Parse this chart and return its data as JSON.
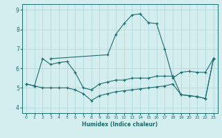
{
  "xlabel": "Humidex (Indice chaleur)",
  "bg_color": "#d4eef0",
  "line_color": "#1a6b6b",
  "grid_color": "#a8d4d8",
  "xlim": [
    -0.5,
    23.5
  ],
  "ylim": [
    3.7,
    9.3
  ],
  "yticks": [
    4,
    5,
    6,
    7,
    8,
    9
  ],
  "xticks": [
    0,
    1,
    2,
    3,
    4,
    5,
    6,
    7,
    8,
    9,
    10,
    11,
    12,
    13,
    14,
    15,
    16,
    17,
    18,
    19,
    20,
    21,
    22,
    23
  ],
  "line1_x": [
    0,
    1,
    2,
    3,
    4,
    5,
    6,
    7,
    8,
    9,
    10,
    11,
    12,
    13,
    14,
    15,
    16,
    17,
    18,
    19,
    20,
    21,
    22,
    23
  ],
  "line1_y": [
    5.2,
    5.1,
    6.5,
    6.2,
    6.3,
    6.35,
    5.8,
    5.0,
    4.9,
    5.2,
    5.3,
    5.4,
    5.4,
    5.5,
    5.5,
    5.5,
    5.6,
    5.6,
    5.6,
    4.65,
    4.6,
    4.55,
    4.45,
    6.5
  ],
  "line2_x": [
    0,
    1,
    2,
    3,
    4,
    5,
    6,
    7,
    8,
    9,
    10,
    11,
    12,
    13,
    14,
    15,
    16,
    17,
    18,
    19,
    20,
    21,
    22,
    23
  ],
  "line2_y": [
    5.2,
    5.1,
    5.0,
    5.0,
    5.0,
    5.0,
    4.9,
    4.7,
    4.35,
    4.6,
    4.7,
    4.8,
    4.85,
    4.9,
    4.95,
    5.0,
    5.05,
    5.1,
    5.2,
    4.65,
    4.6,
    4.55,
    4.45,
    6.5
  ],
  "line3_x": [
    3,
    10,
    11,
    12,
    13,
    14,
    15,
    16,
    17,
    18,
    19,
    20,
    21,
    22,
    23
  ],
  "line3_y": [
    6.5,
    6.7,
    7.75,
    8.3,
    8.75,
    8.8,
    8.35,
    8.3,
    7.0,
    5.5,
    5.8,
    5.85,
    5.8,
    5.8,
    6.5
  ]
}
